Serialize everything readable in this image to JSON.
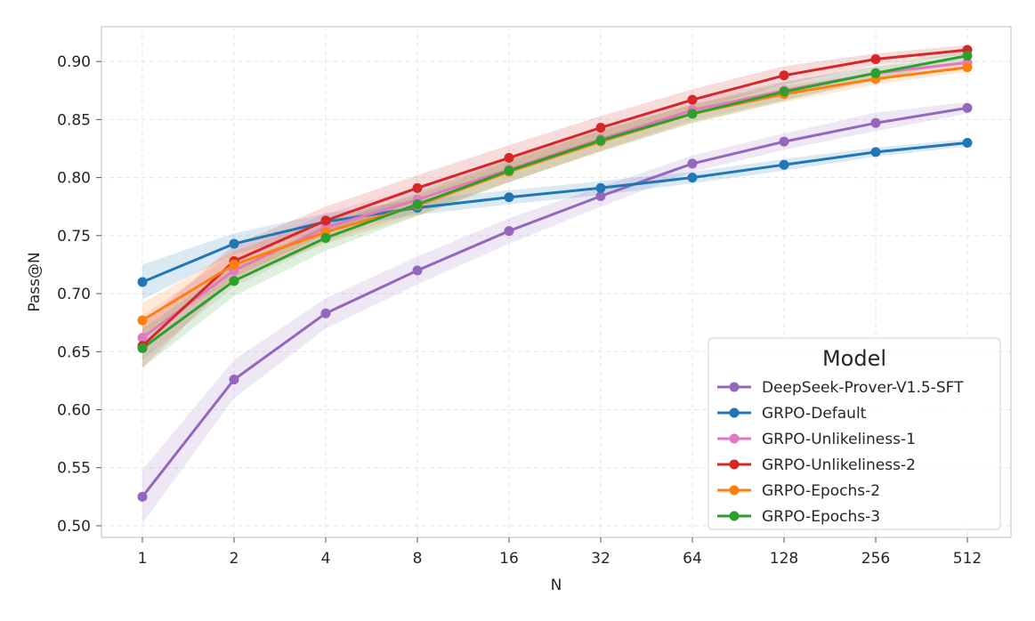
{
  "chart_data": {
    "type": "line",
    "title": "",
    "xlabel": "N",
    "ylabel": "Pass@N",
    "x": [
      "1",
      "2",
      "4",
      "8",
      "16",
      "32",
      "64",
      "128",
      "256",
      "512"
    ],
    "ylim": [
      0.49,
      0.93
    ],
    "yticks": [
      "0.50",
      "0.55",
      "0.60",
      "0.65",
      "0.70",
      "0.75",
      "0.80",
      "0.85",
      "0.90"
    ],
    "grid": true,
    "legend": {
      "title": "Model",
      "position": "lower-right"
    },
    "series": [
      {
        "name": "DeepSeek-Prover-V1.5-SFT",
        "color": "#9467bd",
        "values": [
          0.525,
          0.626,
          0.683,
          0.72,
          0.754,
          0.784,
          0.812,
          0.831,
          0.847,
          0.86
        ],
        "lower": [
          0.502,
          0.61,
          0.67,
          0.708,
          0.743,
          0.775,
          0.805,
          0.824,
          0.84,
          0.855
        ],
        "upper": [
          0.548,
          0.643,
          0.696,
          0.732,
          0.765,
          0.792,
          0.819,
          0.838,
          0.856,
          0.865
        ]
      },
      {
        "name": "GRPO-Default",
        "color": "#1f77b4",
        "values": [
          0.71,
          0.743,
          0.762,
          0.774,
          0.783,
          0.791,
          0.8,
          0.811,
          0.822,
          0.83
        ],
        "lower": [
          0.695,
          0.734,
          0.755,
          0.768,
          0.777,
          0.785,
          0.795,
          0.806,
          0.818,
          0.827
        ],
        "upper": [
          0.725,
          0.752,
          0.769,
          0.781,
          0.789,
          0.797,
          0.805,
          0.816,
          0.826,
          0.833
        ]
      },
      {
        "name": "GRPO-Unlikeliness-1",
        "color": "#e377c2",
        "values": [
          0.662,
          0.72,
          0.757,
          0.781,
          0.807,
          0.833,
          0.858,
          0.875,
          0.89,
          0.899
        ],
        "lower": [
          0.643,
          0.706,
          0.745,
          0.77,
          0.796,
          0.823,
          0.849,
          0.867,
          0.884,
          0.895
        ],
        "upper": [
          0.681,
          0.735,
          0.769,
          0.792,
          0.818,
          0.843,
          0.867,
          0.883,
          0.896,
          0.903
        ]
      },
      {
        "name": "GRPO-Unlikeliness-2",
        "color": "#d62728",
        "values": [
          0.655,
          0.728,
          0.763,
          0.791,
          0.817,
          0.843,
          0.867,
          0.888,
          0.902,
          0.91
        ],
        "lower": [
          0.636,
          0.714,
          0.751,
          0.78,
          0.806,
          0.833,
          0.858,
          0.88,
          0.897,
          0.906
        ],
        "upper": [
          0.674,
          0.742,
          0.775,
          0.802,
          0.828,
          0.853,
          0.876,
          0.896,
          0.907,
          0.914
        ]
      },
      {
        "name": "GRPO-Epochs-2",
        "color": "#ff7f0e",
        "values": [
          0.677,
          0.725,
          0.753,
          0.776,
          0.805,
          0.831,
          0.855,
          0.872,
          0.885,
          0.895
        ],
        "lower": [
          0.662,
          0.713,
          0.743,
          0.767,
          0.796,
          0.822,
          0.847,
          0.865,
          0.88,
          0.891
        ],
        "upper": [
          0.692,
          0.737,
          0.763,
          0.785,
          0.814,
          0.84,
          0.863,
          0.879,
          0.89,
          0.899
        ]
      },
      {
        "name": "GRPO-Epochs-3",
        "color": "#2ca02c",
        "values": [
          0.653,
          0.711,
          0.748,
          0.777,
          0.806,
          0.832,
          0.855,
          0.874,
          0.89,
          0.905
        ],
        "lower": [
          0.636,
          0.698,
          0.737,
          0.767,
          0.796,
          0.823,
          0.847,
          0.866,
          0.884,
          0.901
        ],
        "upper": [
          0.67,
          0.724,
          0.759,
          0.787,
          0.816,
          0.841,
          0.863,
          0.882,
          0.896,
          0.909
        ]
      }
    ]
  }
}
